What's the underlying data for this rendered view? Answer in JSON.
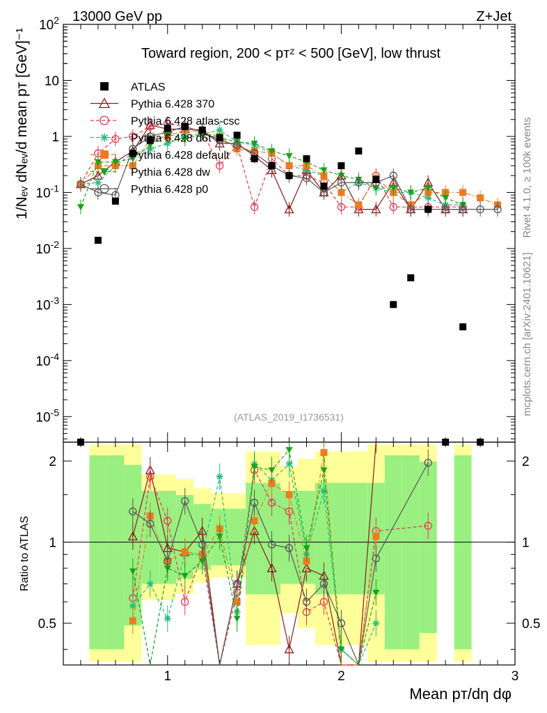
{
  "header": {
    "left": "13000 GeV pp",
    "right": "Z+Jet"
  },
  "side_labels": {
    "rivet": "Rivet 4.1.0, ≥ 100k events",
    "mcplots": "mcplots.cern.ch [arXiv:2401.10621]"
  },
  "chart_data": {
    "type": "scatter",
    "title": "Toward region, 200 < p_T^Z < 500 [GeV], low thrust",
    "watermark": "(ATLAS_2019_I1736531)",
    "xlabel": "Mean p_T/dη dφ",
    "ylabel": "1/N_ev dN_ev/d mean p_T [GeV]^-1",
    "ratio_ylabel": "Ratio to ATLAS",
    "xlim": [
      0.4,
      3.0
    ],
    "ylim": [
      3.5e-06,
      100
    ],
    "ratio_ylim": [
      0.35,
      2.35
    ],
    "x_ticks": [
      "1",
      "2",
      "3"
    ],
    "y_ticks": [
      "10^-5",
      "10^-4",
      "10^-3",
      "10^-2",
      "10^-1",
      "1",
      "10",
      "10^2"
    ],
    "ratio_ticks": [
      "0.5",
      "1",
      "2"
    ],
    "data": {
      "name": "ATLAS",
      "color": "#000000",
      "x": [
        0.5,
        0.6,
        0.7,
        0.8,
        0.9,
        1.0,
        1.1,
        1.2,
        1.3,
        1.4,
        1.5,
        1.6,
        1.7,
        1.8,
        1.9,
        2.0,
        2.1,
        2.2,
        2.3,
        2.4,
        2.5,
        2.6,
        2.7,
        2.8
      ],
      "y": [
        3.5e-06,
        0.014,
        0.07,
        0.5,
        0.85,
        1.4,
        1.5,
        1.3,
        0.95,
        1.05,
        0.4,
        0.3,
        0.2,
        0.4,
        0.13,
        0.3,
        0.55,
        0.17,
        0.001,
        0.003,
        0.05,
        3.5e-06,
        0.0004,
        3.5e-06
      ]
    },
    "series": [
      {
        "name": "Pythia 6.428 370",
        "color": "#8b1a1a",
        "marker": "triangle-open",
        "dash": "solid",
        "x": [
          0.5,
          0.6,
          0.7,
          0.8,
          0.9,
          1.0,
          1.1,
          1.2,
          1.3,
          1.4,
          1.5,
          1.6,
          1.7,
          1.8,
          1.9,
          2.0,
          2.1,
          2.2,
          2.3,
          2.4,
          2.5,
          2.6,
          2.7
        ],
        "y": [
          0.14,
          0.2,
          0.35,
          0.55,
          1.6,
          1.35,
          1.35,
          1.3,
          0.75,
          0.75,
          0.45,
          0.25,
          0.05,
          0.25,
          0.1,
          0.2,
          0.05,
          0.05,
          0.15,
          0.05,
          0.15,
          0.05,
          0.05
        ]
      },
      {
        "name": "Pythia 6.428 atlas-csc",
        "color": "#e8374f",
        "marker": "circle-open",
        "dash": "dashed",
        "x": [
          0.5,
          0.6,
          0.7,
          0.8,
          0.9,
          1.0,
          1.1,
          1.2,
          1.3,
          1.4,
          1.5,
          1.6,
          1.7,
          1.8,
          1.9,
          2.0,
          2.1,
          2.2,
          2.3,
          2.4,
          2.5,
          2.6,
          2.7
        ],
        "y": [
          0.14,
          0.5,
          0.9,
          1.0,
          1.5,
          1.7,
          1.5,
          1.2,
          0.3,
          0.7,
          0.055,
          0.4,
          0.2,
          0.2,
          0.15,
          0.055,
          0.055,
          0.2,
          0.055,
          0.055,
          0.055,
          0.055,
          0.055
        ]
      },
      {
        "name": "Pythia 6.428 d6t",
        "color": "#1fbf7f",
        "marker": "star",
        "dash": "dashed",
        "x": [
          0.5,
          0.6,
          0.7,
          0.8,
          0.9,
          1.0,
          1.1,
          1.2,
          1.3,
          1.4,
          1.5,
          1.6,
          1.7,
          1.8,
          1.9,
          2.0,
          2.1,
          2.2,
          2.3,
          2.4,
          2.5,
          2.6,
          2.7
        ],
        "y": [
          0.14,
          0.15,
          0.3,
          0.5,
          0.6,
          0.75,
          1.0,
          1.1,
          1.3,
          0.8,
          0.7,
          0.5,
          0.3,
          0.25,
          0.2,
          0.1,
          0.15,
          0.12,
          0.1,
          0.1,
          0.08,
          0.06,
          0.06
        ]
      },
      {
        "name": "Pythia 6.428 default",
        "color": "#ee7b22",
        "marker": "square",
        "dash": "dashdot",
        "x": [
          0.5,
          0.6,
          0.7,
          0.8,
          0.9,
          1.0,
          1.1,
          1.2,
          1.3,
          1.4,
          1.5,
          1.6,
          1.7,
          1.8,
          1.9,
          2.0,
          2.1,
          2.2,
          2.3,
          2.4,
          2.5,
          2.6,
          2.7,
          2.8,
          2.9
        ],
        "y": [
          0.14,
          0.3,
          0.3,
          0.3,
          0.9,
          1.0,
          1.3,
          1.2,
          1.0,
          0.6,
          0.55,
          0.5,
          0.3,
          0.3,
          0.2,
          0.1,
          0.06,
          0.18,
          0.1,
          0.06,
          0.1,
          0.1,
          0.1,
          0.08,
          0.06
        ]
      },
      {
        "name": "Pythia 6.428 dw",
        "color": "#1aa11a",
        "marker": "triangle-down",
        "dash": "dashed",
        "x": [
          0.5,
          0.6,
          0.7,
          0.8,
          0.9,
          1.0,
          1.1,
          1.2,
          1.3,
          1.4,
          1.5,
          1.6,
          1.7,
          1.8,
          1.9,
          2.0,
          2.1,
          2.2,
          2.3,
          2.4,
          2.5,
          2.6,
          2.7
        ],
        "y": [
          0.055,
          0.35,
          0.35,
          0.4,
          0.7,
          1.1,
          0.9,
          1.1,
          0.95,
          0.8,
          0.75,
          0.55,
          0.45,
          0.35,
          0.25,
          0.2,
          0.17,
          0.12,
          0.12,
          0.1,
          0.12,
          0.08,
          0.06
        ]
      },
      {
        "name": "Pythia 6.428 p0",
        "color": "#555555",
        "marker": "circle-open",
        "dash": "solid",
        "x": [
          0.5,
          0.6,
          0.7,
          0.8,
          0.9,
          1.0,
          1.1,
          1.2,
          1.3,
          1.4,
          1.5,
          1.6,
          1.7,
          1.8,
          1.9,
          2.0,
          2.1,
          2.2,
          2.3,
          2.4,
          2.5,
          2.6,
          2.7,
          2.8,
          2.9
        ],
        "y": [
          0.14,
          0.1,
          0.09,
          0.6,
          1.0,
          1.2,
          1.5,
          1.2,
          0.85,
          0.7,
          0.5,
          0.3,
          0.2,
          0.18,
          0.1,
          0.15,
          0.15,
          0.15,
          0.2,
          0.05,
          0.05,
          0.05,
          0.05,
          0.05,
          0.05
        ]
      }
    ],
    "ratio_data": {
      "bands_x": [
        0.5,
        0.6,
        0.7,
        0.8,
        0.9,
        1.0,
        1.1,
        1.2,
        1.3,
        1.4,
        1.5,
        1.6,
        1.7,
        1.8,
        1.9,
        2.0,
        2.1,
        2.2,
        2.3,
        2.4,
        2.5,
        2.6,
        2.7,
        2.8
      ],
      "stat_band": [
        0.0,
        1.0,
        1.0,
        0.85,
        0.5,
        0.5,
        0.45,
        0.35,
        0.3,
        0.3,
        0.6,
        0.6,
        0.5,
        0.5,
        0.6,
        0.6,
        0.6,
        0.6,
        1.0,
        1.0,
        0.9,
        0.0,
        1.0,
        0.0
      ],
      "total_band": [
        0.0,
        1.0,
        1.0,
        1.0,
        0.6,
        0.6,
        0.55,
        0.45,
        0.4,
        0.4,
        0.9,
        0.9,
        0.7,
        0.8,
        0.9,
        0.9,
        0.9,
        1.0,
        1.0,
        1.0,
        1.0,
        0.0,
        1.0,
        0.0
      ],
      "series": [
        {
          "name": "Pythia 6.428 370",
          "x": [
            0.8,
            0.9,
            1.0,
            1.1,
            1.2,
            1.3,
            1.4,
            1.5,
            1.6,
            1.7,
            1.8,
            1.9,
            2.0,
            2.1,
            2.2
          ],
          "y": [
            1.05,
            1.85,
            0.95,
            0.92,
            1.1,
            0.3,
            0.7,
            1.1,
            0.8,
            0.4,
            0.8,
            0.75,
            0.3,
            0.3,
            2.4
          ]
        },
        {
          "name": "Pythia 6.428 atlas-csc",
          "x": [
            0.8,
            0.9,
            1.0,
            1.1,
            1.2,
            1.3,
            1.4,
            1.5,
            1.6,
            1.7,
            1.8,
            1.9,
            2.0,
            2.1,
            2.2,
            2.5
          ],
          "y": [
            0.62,
            1.75,
            1.2,
            0.6,
            0.9,
            0.3,
            0.65,
            1.85,
            1.4,
            1.3,
            0.55,
            0.6,
            0.2,
            0.1,
            1.1,
            1.15
          ]
        },
        {
          "name": "Pythia 6.428 d6t",
          "x": [
            0.8,
            0.9,
            1.0,
            1.1,
            1.2,
            1.3,
            1.4,
            1.5,
            1.6,
            1.7,
            1.8,
            1.9,
            2.0,
            2.1,
            2.2
          ],
          "y": [
            0.58,
            0.7,
            0.52,
            0.9,
            0.9,
            1.75,
            0.55,
            1.95,
            1.7,
            1.95,
            0.9,
            1.55,
            0.4,
            0.3,
            0.5
          ]
        },
        {
          "name": "Pythia 6.428 default",
          "x": [
            0.8,
            0.9,
            1.0,
            1.1,
            1.2,
            1.3,
            1.4,
            1.5,
            1.6,
            1.7,
            1.8,
            1.9,
            2.0,
            2.1,
            2.2
          ],
          "y": [
            0.51,
            1.25,
            0.85,
            0.92,
            0.9,
            1.12,
            0.6,
            1.2,
            1.65,
            1.5,
            0.85,
            2.15,
            0.35,
            0.15,
            1.05
          ]
        },
        {
          "name": "Pythia 6.428 dw",
          "x": [
            0.8,
            0.9,
            1.0,
            1.1,
            1.2,
            1.3,
            1.4,
            1.5,
            1.6,
            1.7,
            1.8,
            1.9,
            2.0,
            2.1,
            2.2
          ],
          "y": [
            0.78,
            0.3,
            0.8,
            0.75,
            0.85,
            1.05,
            0.52,
            1.9,
            1.85,
            2.2,
            0.95,
            1.85,
            0.4,
            0.3,
            0.65
          ]
        },
        {
          "name": "Pythia 6.428 p0",
          "x": [
            0.8,
            0.9,
            1.0,
            1.1,
            1.2,
            1.3,
            1.4,
            1.5,
            1.6,
            1.7,
            1.8,
            1.9,
            2.0,
            2.1,
            2.2,
            2.5
          ],
          "y": [
            1.3,
            1.17,
            0.85,
            1.42,
            0.98,
            0.3,
            0.7,
            1.4,
            0.98,
            0.95,
            0.6,
            0.7,
            0.5,
            0.3,
            0.87,
            1.97
          ]
        }
      ]
    }
  }
}
